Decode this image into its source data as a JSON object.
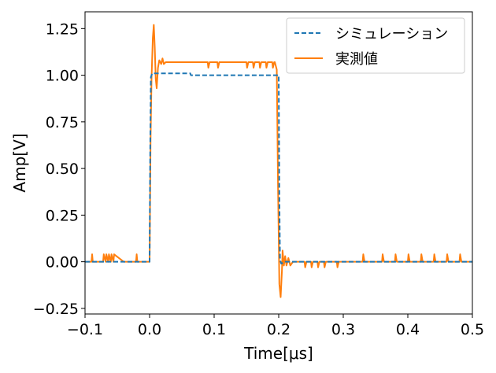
{
  "chart_data": {
    "type": "line",
    "title": "",
    "xlabel": "Time[μs]",
    "ylabel": "Amp[V]",
    "xlim": [
      -0.1,
      0.5
    ],
    "ylim": [
      -0.28,
      1.34
    ],
    "x_ticks": [
      -0.1,
      0.0,
      0.1,
      0.2,
      0.3,
      0.4,
      0.5
    ],
    "x_tick_labels": [
      "−0.1",
      "0.0",
      "0.1",
      "0.2",
      "0.3",
      "0.4",
      "0.5"
    ],
    "y_ticks": [
      -0.25,
      0.0,
      0.25,
      0.5,
      0.75,
      1.0,
      1.25
    ],
    "y_tick_labels": [
      "−0.25",
      "0.00",
      "0.25",
      "0.50",
      "0.75",
      "1.00",
      "1.25"
    ],
    "grid": false,
    "legend_position": "top-right",
    "series": [
      {
        "name": "シミュレーション",
        "color": "#1f77b4",
        "style": "dashed",
        "x": [
          -0.1,
          0.0,
          0.001,
          0.002,
          0.004,
          0.01,
          0.063,
          0.064,
          0.199,
          0.2,
          0.201,
          0.202,
          0.204,
          0.21,
          0.5
        ],
        "y": [
          0.0,
          0.0,
          0.6,
          0.99,
          1.01,
          1.01,
          1.01,
          1.0,
          1.0,
          1.0,
          0.35,
          0.01,
          -0.01,
          0.0,
          0.0
        ]
      },
      {
        "name": "実測値",
        "color": "#ff7f0e",
        "style": "solid",
        "x": [
          -0.1,
          -0.09,
          -0.089,
          -0.088,
          -0.08,
          -0.072,
          -0.071,
          -0.068,
          -0.067,
          -0.064,
          -0.063,
          -0.06,
          -0.059,
          -0.056,
          -0.055,
          -0.04,
          -0.021,
          -0.02,
          -0.019,
          0.0,
          0.0015,
          0.003,
          0.005,
          0.0065,
          0.008,
          0.0095,
          0.011,
          0.013,
          0.015,
          0.018,
          0.02,
          0.022,
          0.025,
          0.03,
          0.09,
          0.091,
          0.093,
          0.094,
          0.105,
          0.106,
          0.108,
          0.109,
          0.15,
          0.151,
          0.153,
          0.154,
          0.16,
          0.161,
          0.163,
          0.164,
          0.17,
          0.171,
          0.173,
          0.174,
          0.18,
          0.181,
          0.183,
          0.184,
          0.19,
          0.191,
          0.193,
          0.194,
          0.197,
          0.199,
          0.201,
          0.203,
          0.205,
          0.206,
          0.208,
          0.21,
          0.212,
          0.215,
          0.218,
          0.222,
          0.23,
          0.24,
          0.241,
          0.243,
          0.244,
          0.25,
          0.251,
          0.253,
          0.254,
          0.26,
          0.261,
          0.263,
          0.264,
          0.27,
          0.271,
          0.273,
          0.274,
          0.29,
          0.291,
          0.293,
          0.294,
          0.3,
          0.33,
          0.331,
          0.333,
          0.334,
          0.36,
          0.361,
          0.363,
          0.364,
          0.38,
          0.381,
          0.383,
          0.384,
          0.4,
          0.401,
          0.403,
          0.404,
          0.42,
          0.421,
          0.423,
          0.424,
          0.44,
          0.441,
          0.443,
          0.444,
          0.46,
          0.461,
          0.463,
          0.464,
          0.48,
          0.481,
          0.483,
          0.484,
          0.5
        ],
        "y": [
          0.0,
          0.0,
          0.04,
          0.0,
          0.0,
          0.0,
          0.04,
          0.0,
          0.04,
          0.0,
          0.04,
          0.0,
          0.04,
          0.0,
          0.04,
          0.0,
          0.0,
          0.04,
          0.0,
          0.0,
          0.65,
          0.98,
          1.2,
          1.27,
          1.15,
          0.98,
          0.93,
          1.04,
          1.08,
          1.06,
          1.09,
          1.06,
          1.07,
          1.07,
          1.07,
          1.04,
          1.07,
          1.07,
          1.07,
          1.04,
          1.07,
          1.07,
          1.07,
          1.04,
          1.07,
          1.07,
          1.07,
          1.04,
          1.07,
          1.07,
          1.07,
          1.04,
          1.07,
          1.07,
          1.07,
          1.04,
          1.07,
          1.07,
          1.07,
          1.04,
          1.07,
          1.07,
          1.03,
          0.4,
          -0.12,
          -0.19,
          -0.05,
          0.06,
          -0.02,
          0.03,
          -0.02,
          0.02,
          -0.02,
          0.0,
          0.0,
          0.0,
          -0.03,
          0.0,
          0.0,
          0.0,
          -0.03,
          0.0,
          0.0,
          0.0,
          -0.03,
          0.0,
          0.0,
          0.0,
          -0.03,
          0.0,
          0.0,
          0.0,
          -0.03,
          0.0,
          0.0,
          0.0,
          0.0,
          0.04,
          0.0,
          0.0,
          0.0,
          0.04,
          0.0,
          0.0,
          0.0,
          0.04,
          0.0,
          0.0,
          0.0,
          0.04,
          0.0,
          0.0,
          0.0,
          0.04,
          0.0,
          0.0,
          0.0,
          0.04,
          0.0,
          0.0,
          0.0,
          0.04,
          0.0,
          0.0,
          0.0,
          0.04,
          0.0,
          0.0,
          0.0
        ]
      }
    ]
  }
}
